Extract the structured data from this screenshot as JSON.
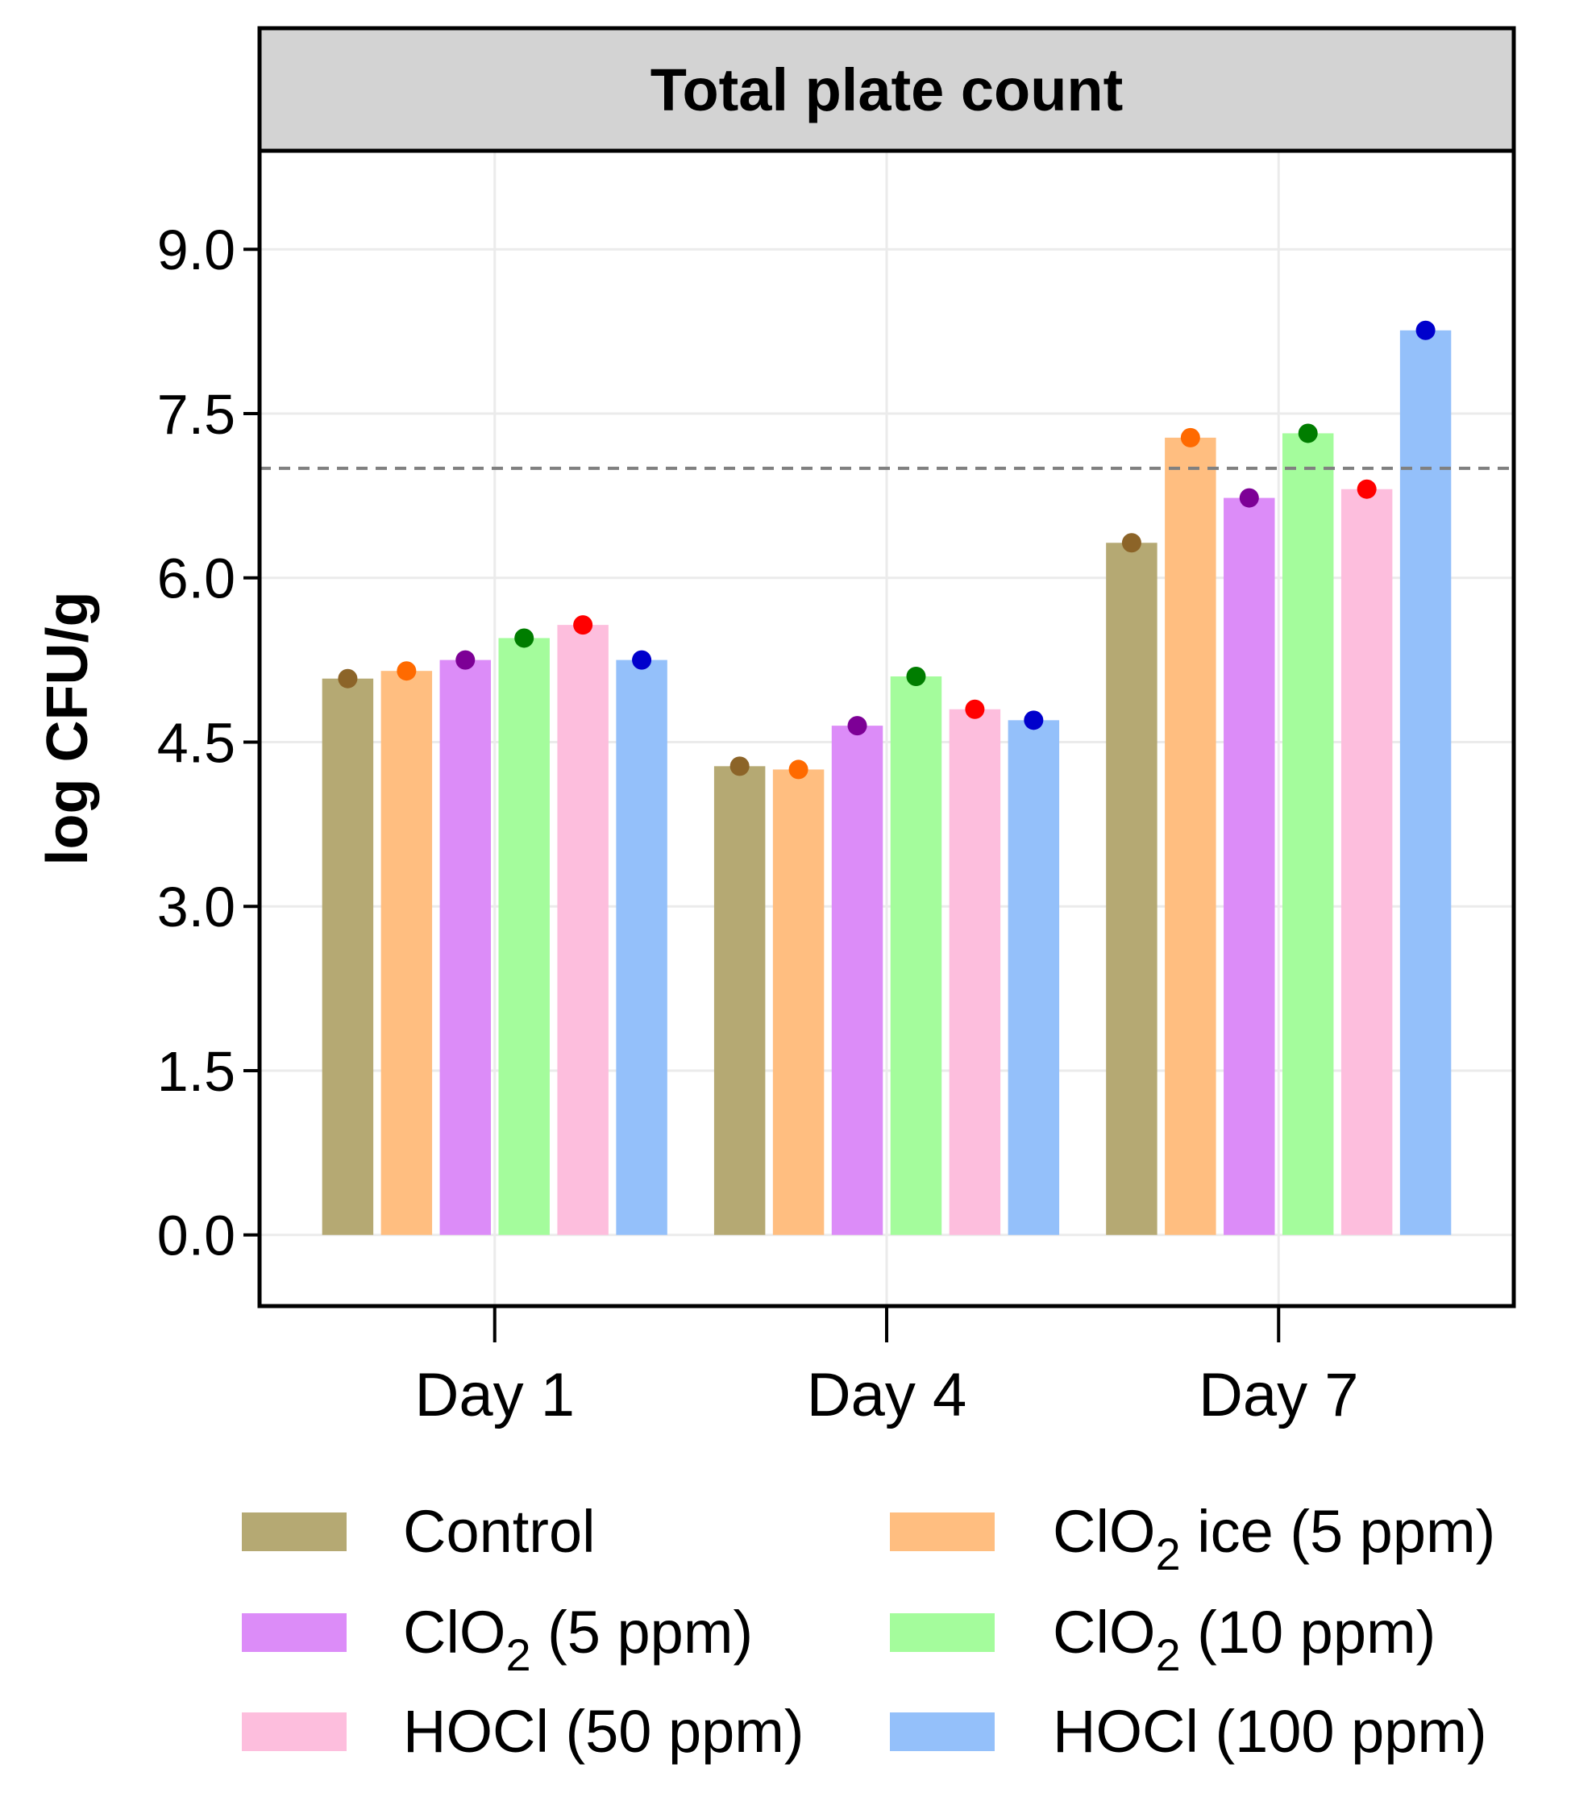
{
  "chart_data": {
    "type": "bar",
    "title": "Total plate count",
    "ylabel": "log CFU/g",
    "xlabel": "",
    "ylim": [
      -0.65,
      9.9
    ],
    "yticks": [
      0.0,
      1.5,
      3.0,
      4.5,
      6.0,
      7.5,
      9.0
    ],
    "ytick_labels": [
      "0.0",
      "1.5",
      "3.0",
      "4.5",
      "6.0",
      "7.5",
      "9.0"
    ],
    "categories": [
      "Day 1",
      "Day 4",
      "Day 7"
    ],
    "reference_line": 7.0,
    "grid": true,
    "legend_position": "bottom",
    "series": [
      {
        "name": "Control",
        "legend_main": "Control",
        "legend_sub": "",
        "legend_rest": "",
        "bar_color": "#b5a973",
        "point_color": "#8c6428",
        "values": [
          5.08,
          4.28,
          6.32
        ]
      },
      {
        "name": "ClO2 ice (5 ppm)",
        "legend_main": "ClO",
        "legend_sub": "2",
        "legend_rest": " ice (5 ppm)",
        "bar_color": "#ffbe80",
        "point_color": "#ff6a00",
        "values": [
          5.15,
          4.25,
          7.28
        ]
      },
      {
        "name": "ClO2 (5 ppm)",
        "legend_main": "ClO",
        "legend_sub": "2",
        "legend_rest": " (5 ppm)",
        "bar_color": "#dc8cf8",
        "point_color": "#7d0096",
        "values": [
          5.25,
          4.65,
          6.73
        ]
      },
      {
        "name": "ClO2 (10 ppm)",
        "legend_main": "ClO",
        "legend_sub": "2",
        "legend_rest": " (10 ppm)",
        "bar_color": "#a4fc9c",
        "point_color": "#007d00",
        "values": [
          5.45,
          5.1,
          7.32
        ]
      },
      {
        "name": "HOCl (50 ppm)",
        "legend_main": "HOCl (50 ppm)",
        "legend_sub": "",
        "legend_rest": "",
        "bar_color": "#fdbedd",
        "point_color": "#ff0000",
        "values": [
          5.57,
          4.8,
          6.81
        ]
      },
      {
        "name": "HOCl (100 ppm)",
        "legend_main": "HOCl (100 ppm)",
        "legend_sub": "",
        "legend_rest": "",
        "bar_color": "#94c0fa",
        "point_color": "#0000cc",
        "values": [
          5.25,
          4.7,
          8.26
        ]
      }
    ]
  }
}
